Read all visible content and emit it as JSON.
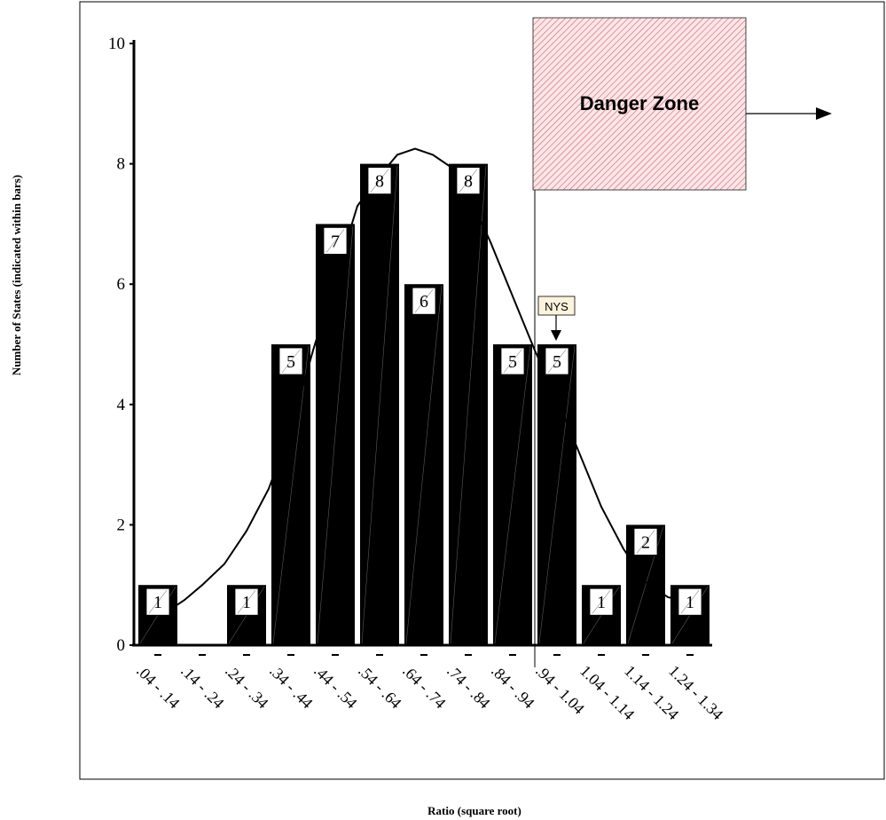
{
  "chart_data": {
    "type": "bar",
    "xlabel": "Ratio (square root)",
    "ylabel": "Number of States (indicated within bars)",
    "categories": [
      ".04 - .14",
      ".14 - .24",
      ".24 - .34",
      ".34 - .44",
      ".44 - .54",
      ".54 - .64",
      ".64 - .74",
      ".74 - .84",
      ".84 - .94",
      ".94 - 1.04",
      "1.04 - 1.14",
      "1.14 - 1.24",
      "1.24 - 1.34"
    ],
    "values": [
      1,
      0,
      1,
      5,
      7,
      8,
      6,
      8,
      5,
      5,
      1,
      2,
      1
    ],
    "value_labels": [
      "1",
      "",
      "1",
      "5",
      "7",
      "8",
      "6",
      "8",
      "5",
      "5",
      "1",
      "2",
      "1"
    ],
    "ylim": [
      0,
      10
    ],
    "yticks": [
      "0",
      "2",
      "4",
      "6",
      "8",
      "10"
    ],
    "curve": {
      "x": [
        0.09,
        0.6,
        1.0,
        1.5,
        2.0,
        2.5,
        3.0,
        3.5,
        4.0,
        4.5,
        5.0,
        5.4,
        5.8,
        6.2,
        6.6,
        7.0,
        7.5,
        8.0,
        8.5,
        9.0,
        9.5,
        10.0,
        10.5,
        11.0,
        11.5,
        12.0
      ],
      "y": [
        0.5,
        0.75,
        1.0,
        1.35,
        1.9,
        2.6,
        3.6,
        4.9,
        6.1,
        7.3,
        7.8,
        8.15,
        8.25,
        8.15,
        7.95,
        7.5,
        6.7,
        5.8,
        4.9,
        4.1,
        3.2,
        2.3,
        1.6,
        1.05,
        0.8,
        0.7
      ]
    },
    "danger_zone": {
      "label": "Danger Zone",
      "x_start": 9.0
    },
    "annotation": {
      "label": "NYS",
      "category_index": 9
    },
    "colors": {
      "bar": "#000000",
      "zone_hatch": "#d0606a",
      "zone_fill": "#fbe6e8",
      "nys_fill": "#fdf3dc"
    },
    "grid": false,
    "legend": "none"
  }
}
